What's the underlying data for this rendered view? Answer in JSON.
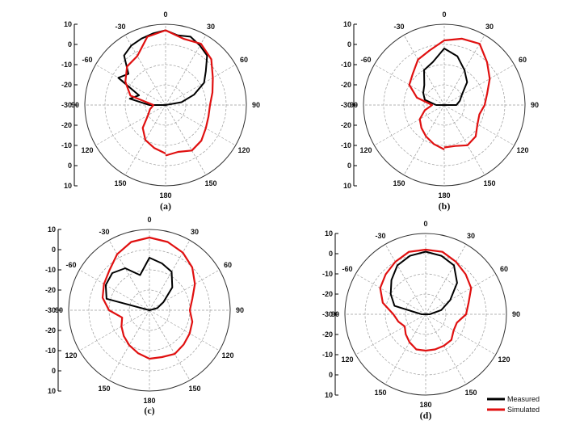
{
  "colors": {
    "measured": "#000000",
    "simulated": "#e01010",
    "grid": "#9a9a9a"
  },
  "legend": {
    "measured": "Measured",
    "simulated": "Simulated",
    "placement": "bottom-right"
  },
  "chart_data": [
    {
      "type": "polar-line",
      "panel_label": "(a)",
      "angle_tick_labels": [
        "0",
        "30",
        "60",
        "90",
        "120",
        "150",
        "180",
        "150",
        "120",
        "90",
        "-60",
        "-30"
      ],
      "radial_tick_labels": [
        "10",
        "0",
        "-10",
        "-20",
        "-30",
        "-20",
        "-10",
        "0",
        "10"
      ],
      "rlim": [
        -30,
        10
      ],
      "grid": true,
      "series": [
        {
          "name": "Measured",
          "theta_deg": [
            -90,
            -80,
            -70,
            -60,
            -50,
            -40,
            -30,
            -20,
            -10,
            0,
            10,
            20,
            30,
            40,
            50,
            60,
            70,
            80,
            90
          ],
          "r_db": [
            -22,
            -12,
            -16,
            -3,
            -6,
            2,
            4,
            5,
            6,
            7,
            5,
            6,
            4,
            2,
            -4,
            -8,
            -15,
            -22,
            -30
          ]
        },
        {
          "name": "Simulated",
          "theta_deg": [
            -180,
            -165,
            -150,
            -135,
            -120,
            -105,
            -90,
            -75,
            -60,
            -45,
            -30,
            -15,
            0,
            15,
            30,
            45,
            60,
            75,
            90,
            105,
            120,
            135,
            150,
            165,
            180
          ],
          "r_db": [
            -6,
            -8,
            -10,
            -14,
            -20,
            -22,
            -24,
            -12,
            -7,
            -3,
            -2,
            5,
            7,
            4,
            5,
            2,
            -3,
            -6,
            -8,
            -8,
            -7,
            -5,
            -4,
            -6,
            -5
          ]
        }
      ]
    },
    {
      "type": "polar-line",
      "panel_label": "(b)",
      "angle_tick_labels": [
        "0",
        "30",
        "60",
        "90",
        "120",
        "150",
        "180",
        "150",
        "120",
        "90",
        "-60",
        "-30"
      ],
      "radial_tick_labels": [
        "10",
        "0",
        "-10",
        "-20",
        "-30",
        "-20",
        "-10",
        "0",
        "10"
      ],
      "rlim": [
        -30,
        10
      ],
      "grid": true,
      "series": [
        {
          "name": "Measured",
          "theta_deg": [
            -90,
            -75,
            -60,
            -45,
            -30,
            -15,
            0,
            15,
            30,
            45,
            60,
            75,
            90
          ],
          "r_db": [
            -26,
            -20,
            -18,
            -16,
            -10,
            -8,
            -2,
            -5,
            -10,
            -14,
            -20,
            -22,
            -24
          ]
        },
        {
          "name": "Simulated",
          "theta_deg": [
            -180,
            -165,
            -150,
            -135,
            -120,
            -105,
            -90,
            -75,
            -60,
            -45,
            -30,
            -15,
            0,
            15,
            30,
            45,
            60,
            75,
            90,
            105,
            120,
            135,
            150,
            165,
            180
          ],
          "r_db": [
            -8,
            -10,
            -12,
            -14,
            -16,
            -20,
            -24,
            -16,
            -10,
            -8,
            -4,
            -2,
            2,
            4,
            5,
            0,
            -4,
            -8,
            -10,
            -12,
            -11,
            -8,
            -7,
            -9,
            -9
          ]
        }
      ]
    },
    {
      "type": "polar-line",
      "panel_label": "(c)",
      "angle_tick_labels": [
        "0",
        "30",
        "60",
        "90",
        "120",
        "150",
        "180",
        "150",
        "120",
        "90",
        "-60",
        "-30"
      ],
      "radial_tick_labels": [
        "10",
        "0",
        "-10",
        "-20",
        "-30",
        "-20",
        "-10",
        "0",
        "10"
      ],
      "rlim": [
        -30,
        10
      ],
      "grid": true,
      "series": [
        {
          "name": "Measured",
          "theta_deg": [
            -90,
            -75,
            -60,
            -45,
            -30,
            -15,
            0,
            15,
            30,
            45,
            60,
            75,
            90
          ],
          "r_db": [
            -30,
            -8,
            -5,
            -4,
            -6,
            -12,
            -4,
            -6,
            -8,
            -14,
            -22,
            -26,
            -30
          ]
        },
        {
          "name": "Simulated",
          "theta_deg": [
            -180,
            -165,
            -150,
            -135,
            -120,
            -105,
            -90,
            -75,
            -60,
            -45,
            -30,
            -15,
            0,
            15,
            30,
            45,
            60,
            75,
            90,
            105,
            120,
            135,
            150,
            165,
            180
          ],
          "r_db": [
            -6,
            -8,
            -10,
            -12,
            -14,
            -16,
            -10,
            -6,
            -4,
            -2,
            2,
            5,
            6,
            5,
            3,
            0,
            -4,
            -8,
            -10,
            -8,
            -7,
            -6,
            -5,
            -6,
            -6
          ]
        }
      ]
    },
    {
      "type": "polar-line",
      "panel_label": "(d)",
      "angle_tick_labels": [
        "0",
        "30",
        "60",
        "90",
        "120",
        "150",
        "180",
        "150",
        "120",
        "90",
        "-60",
        "-30"
      ],
      "radial_tick_labels": [
        "10",
        "0",
        "-10",
        "-20",
        "-30",
        "-20",
        "-10",
        "0",
        "10"
      ],
      "rlim": [
        -30,
        10
      ],
      "grid": true,
      "series": [
        {
          "name": "Measured",
          "theta_deg": [
            -90,
            -75,
            -60,
            -45,
            -30,
            -15,
            0,
            15,
            30,
            45,
            60,
            75,
            90
          ],
          "r_db": [
            -28,
            -14,
            -10,
            -6,
            -2,
            0,
            1,
            0,
            -2,
            -8,
            -16,
            -22,
            -28
          ]
        },
        {
          "name": "Simulated",
          "theta_deg": [
            -180,
            -165,
            -150,
            -135,
            -120,
            -105,
            -90,
            -75,
            -60,
            -45,
            -30,
            -15,
            0,
            15,
            30,
            45,
            60,
            75,
            90,
            105,
            120,
            135,
            150,
            165,
            180
          ],
          "r_db": [
            -12,
            -12,
            -14,
            -16,
            -18,
            -16,
            -14,
            -8,
            -4,
            -2,
            0,
            2,
            2,
            2,
            0,
            -2,
            -4,
            -8,
            -10,
            -14,
            -14,
            -12,
            -12,
            -12,
            -12
          ]
        }
      ]
    }
  ]
}
